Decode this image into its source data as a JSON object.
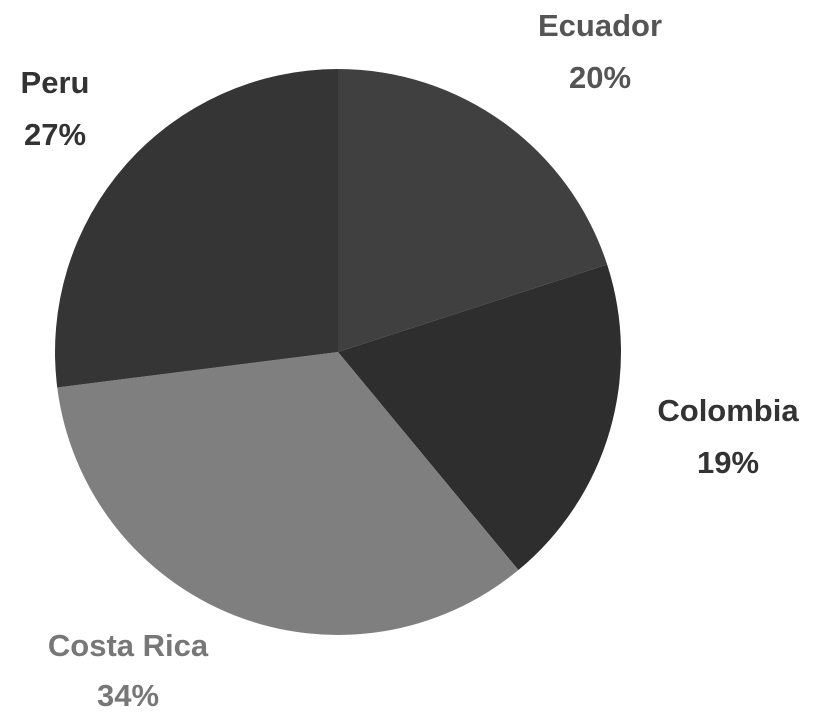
{
  "chart_data": {
    "type": "pie",
    "categories": [
      "Ecuador",
      "Colombia",
      "Costa Rica",
      "Peru"
    ],
    "values": [
      20,
      19,
      34,
      27
    ],
    "value_labels": [
      "20%",
      "19%",
      "34%",
      "27%"
    ],
    "colors": [
      "#404040",
      "#2e2e2e",
      "#7f7f7f",
      "#353535"
    ]
  }
}
